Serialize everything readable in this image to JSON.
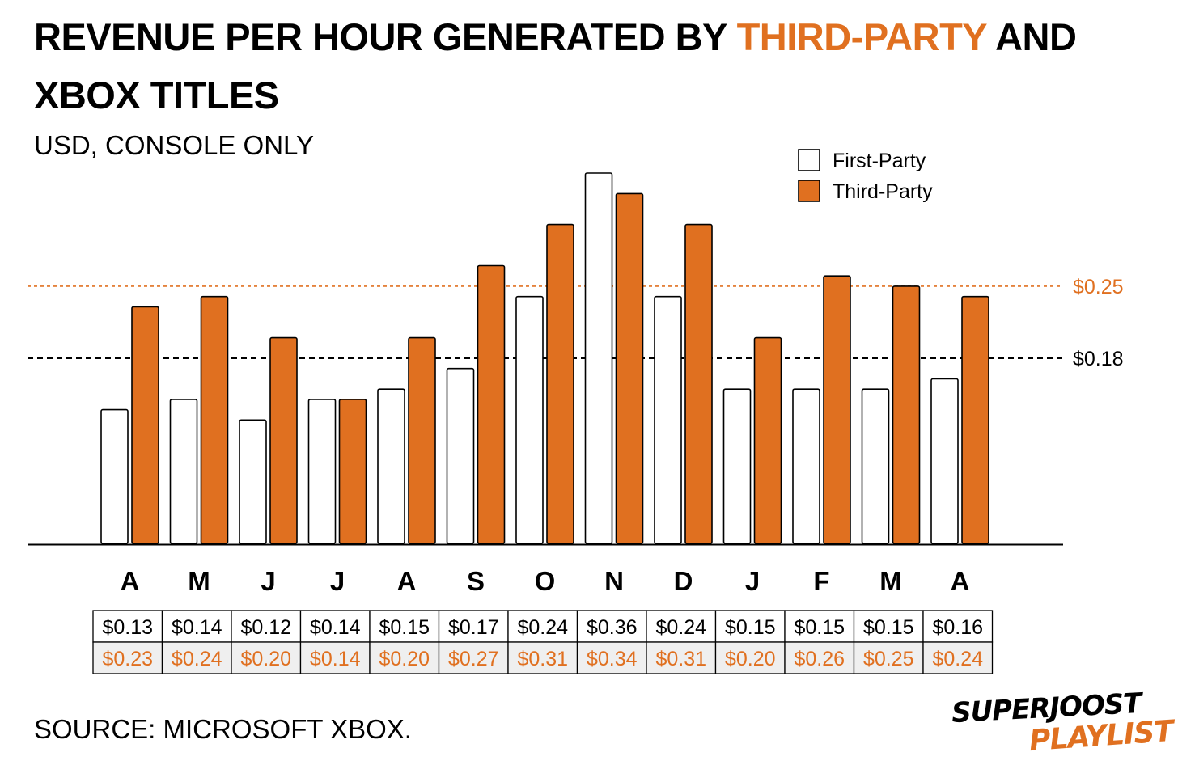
{
  "title": {
    "part1": "REVENUE PER HOUR GENERATED BY ",
    "highlight": "THIRD-PARTY",
    "part2": " AND XBOX TITLES"
  },
  "subtitle": "USD, CONSOLE ONLY",
  "source": "SOURCE: MICROSOFT XBOX.",
  "logo": {
    "line1": "SUPERJOOST",
    "line2": "PLAYLIST"
  },
  "colors": {
    "accent": "#e07020",
    "first_party_fill": "#ffffff",
    "table_alt_fill": "#efefef"
  },
  "chart_data": {
    "type": "bar",
    "categories": [
      "A",
      "M",
      "J",
      "J",
      "A",
      "S",
      "O",
      "N",
      "D",
      "J",
      "F",
      "M",
      "A"
    ],
    "series": [
      {
        "name": "First-Party",
        "values": [
          0.13,
          0.14,
          0.12,
          0.14,
          0.15,
          0.17,
          0.24,
          0.36,
          0.24,
          0.15,
          0.15,
          0.15,
          0.16
        ],
        "labels": [
          "$0.13",
          "$0.14",
          "$0.12",
          "$0.14",
          "$0.15",
          "$0.17",
          "$0.24",
          "$0.36",
          "$0.24",
          "$0.15",
          "$0.15",
          "$0.15",
          "$0.16"
        ]
      },
      {
        "name": "Third-Party",
        "values": [
          0.23,
          0.24,
          0.2,
          0.14,
          0.2,
          0.27,
          0.31,
          0.34,
          0.31,
          0.2,
          0.26,
          0.25,
          0.24
        ],
        "labels": [
          "$0.23",
          "$0.24",
          "$0.20",
          "$0.14",
          "$0.20",
          "$0.27",
          "$0.31",
          "$0.34",
          "$0.31",
          "$0.20",
          "$0.26",
          "$0.25",
          "$0.24"
        ]
      }
    ],
    "reference_lines": [
      {
        "label": "$0.25",
        "value": 0.25,
        "style": "dotted",
        "color": "#e07020"
      },
      {
        "label": "$0.18",
        "value": 0.18,
        "style": "dashed",
        "color": "#000000"
      }
    ],
    "legend": {
      "position": "top-right"
    },
    "grid": false
  }
}
